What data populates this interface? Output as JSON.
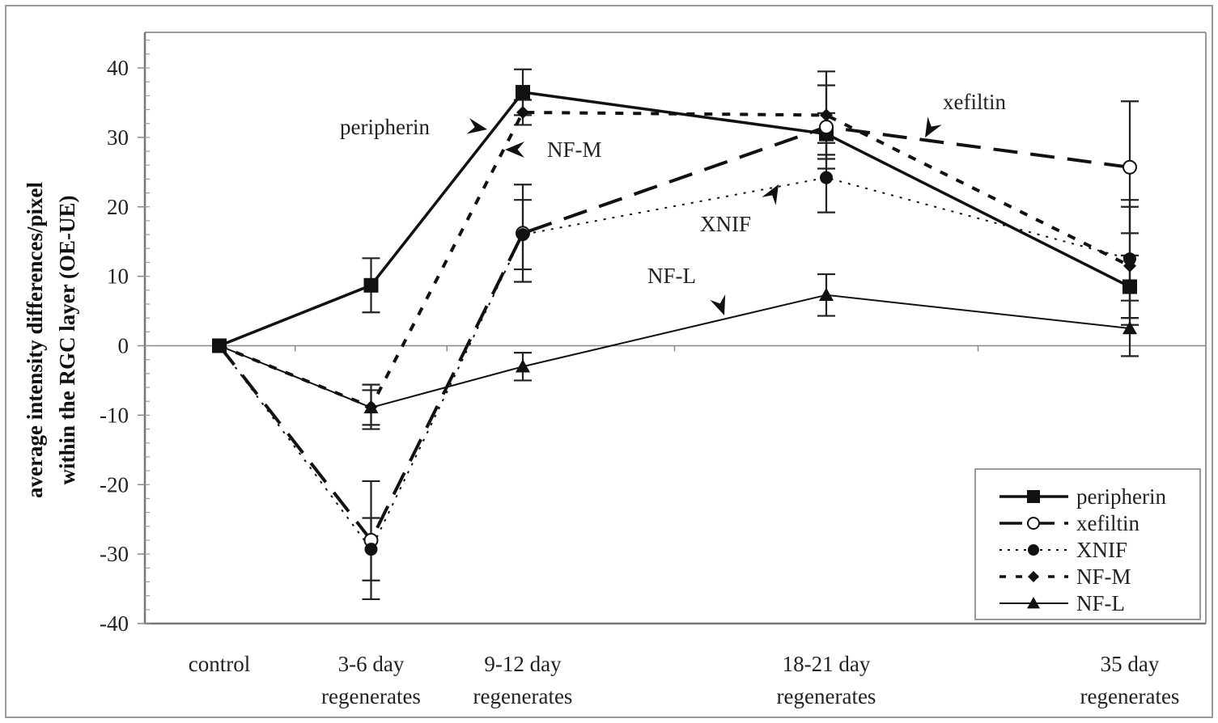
{
  "chart_data": {
    "type": "line",
    "title": "",
    "xlabel": "",
    "ylabel": [
      "average intensity differences/pixel",
      "within the RGC layer (OE-UE)"
    ],
    "ylim": [
      -40,
      40
    ],
    "yticks": [
      40,
      30,
      20,
      10,
      0,
      -10,
      -20,
      -30,
      -40
    ],
    "y_minor_step": 2,
    "x_scale_units": [
      0,
      1,
      2,
      4,
      6
    ],
    "x_range_units": [
      -0.5,
      6.5
    ],
    "x_zero_line_ticks_units": [
      0.5,
      1.5,
      3,
      5
    ],
    "categories": [
      [
        "control"
      ],
      [
        "3-6 day",
        "regenerates"
      ],
      [
        "9-12 day",
        "regenerates"
      ],
      [
        "18-21 day",
        "regenerates"
      ],
      [
        "35 day",
        "regenerates"
      ]
    ],
    "grid": false,
    "zero_line": true,
    "legend_position": "bottom-right",
    "series": [
      {
        "name": "peripherin",
        "style": "solid-thick",
        "marker": "filled-square",
        "values": [
          0,
          8.7,
          36.5,
          30.5,
          8.5
        ],
        "errors": [
          0,
          3.9,
          3.3,
          3.0,
          4.5
        ]
      },
      {
        "name": "xefiltin",
        "style": "long-dash",
        "marker": "open-circle",
        "values": [
          0,
          -28.0,
          16.2,
          31.5,
          25.7
        ],
        "errors": [
          0,
          8.5,
          7.0,
          6.0,
          9.5
        ]
      },
      {
        "name": "XNIF",
        "style": "dotted",
        "marker": "filled-circle",
        "values": [
          0,
          -29.3,
          16.0,
          24.2,
          12.5
        ],
        "errors": [
          0,
          4.5,
          5.0,
          5.0,
          8.5
        ]
      },
      {
        "name": "NF-M",
        "style": "short-dash",
        "marker": "filled-diamond",
        "values": [
          0,
          -8.8,
          33.6,
          33.2,
          11.5
        ],
        "errors": [
          0,
          3.2,
          1.8,
          6.3,
          8.5
        ]
      },
      {
        "name": "NF-L",
        "style": "solid-thin",
        "marker": "filled-triangle",
        "values": [
          0,
          -8.9,
          -3.0,
          7.3,
          2.5
        ],
        "errors": [
          0,
          2.5,
          2.0,
          3.0,
          4.0
        ]
      }
    ],
    "annotations": [
      {
        "text": "peripherin",
        "points_to": "peripherin"
      },
      {
        "text": "NF-M",
        "points_to": "NF-M"
      },
      {
        "text": "xefiltin",
        "points_to": "xefiltin"
      },
      {
        "text": "XNIF",
        "points_to": "XNIF"
      },
      {
        "text": "NF-L",
        "points_to": "NF-L"
      }
    ]
  }
}
